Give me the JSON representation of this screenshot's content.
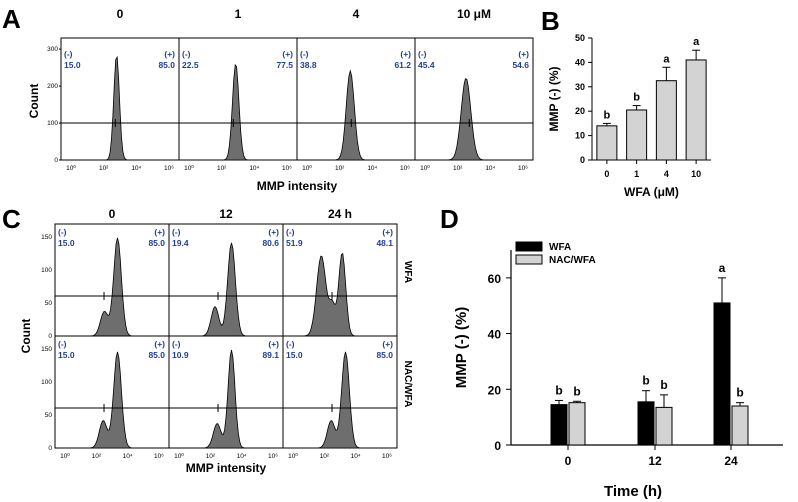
{
  "panels": {
    "A": {
      "label": "A",
      "headers": [
        "0",
        "1",
        "4",
        "10 μM"
      ],
      "neg_label": "(-)",
      "pos_label": "(+)",
      "neg_values": [
        "15.0",
        "22.5",
        "38.8",
        "45.4"
      ],
      "pos_values": [
        "85.0",
        "77.5",
        "61.2",
        "54.6"
      ],
      "y_ticks": [
        "300",
        "200",
        "100",
        "0"
      ],
      "x_ticks": [
        "10⁰",
        "10²",
        "10⁴",
        "10⁶"
      ],
      "ylabel": "Count",
      "xlabel": "MMP intensity"
    },
    "C": {
      "label": "C",
      "headers": [
        "0",
        "12",
        "24 h"
      ],
      "row_labels": [
        "WFA",
        "NAC/WFA"
      ],
      "neg_label": "(-)",
      "pos_label": "(+)",
      "top_neg": [
        "15.0",
        "19.4",
        "51.9"
      ],
      "top_pos": [
        "85.0",
        "80.6",
        "48.1"
      ],
      "bottom_neg": [
        "15.0",
        "10.9",
        "15.0"
      ],
      "bottom_pos": [
        "85.0",
        "89.1",
        "85.0"
      ],
      "y_ticks": [
        "150",
        "100",
        "50",
        "0"
      ],
      "x_ticks": [
        "10⁰",
        "10²",
        "10⁴",
        "10⁶"
      ],
      "ylabel": "Count",
      "xlabel": "MMP intensity"
    },
    "B": {
      "label": "B"
    },
    "D": {
      "label": "D"
    }
  },
  "chart_data": [
    {
      "id": "B",
      "type": "bar",
      "categories": [
        "0",
        "1",
        "4",
        "10"
      ],
      "values": [
        14,
        20.5,
        32.5,
        41
      ],
      "errors": [
        1,
        1.8,
        5.5,
        4
      ],
      "significance": [
        "b",
        "b",
        "a",
        "a"
      ],
      "xlabel": "WFA (μM)",
      "ylabel": "MMP (-) (%)",
      "ylim": [
        0,
        50
      ],
      "yticks": [
        0,
        10,
        20,
        30,
        40,
        50
      ],
      "bar_color": "#d3d3d3"
    },
    {
      "id": "D",
      "type": "bar",
      "categories": [
        "0",
        "12",
        "24"
      ],
      "series": [
        {
          "name": "WFA",
          "values": [
            14.5,
            15.5,
            51
          ],
          "errors": [
            1.5,
            4,
            9
          ],
          "significance": [
            "b",
            "b",
            "a"
          ],
          "color": "#000000"
        },
        {
          "name": "NAC/WFA",
          "values": [
            15.2,
            13.5,
            14
          ],
          "errors": [
            0.5,
            4.5,
            1.2
          ],
          "significance": [
            "b",
            "b",
            "b"
          ],
          "color": "#d3d3d3"
        }
      ],
      "xlabel": "Time (h)",
      "ylabel": "MMP (-) (%)",
      "ylim": [
        0,
        70
      ],
      "yticks": [
        0,
        20,
        40,
        60
      ]
    }
  ]
}
